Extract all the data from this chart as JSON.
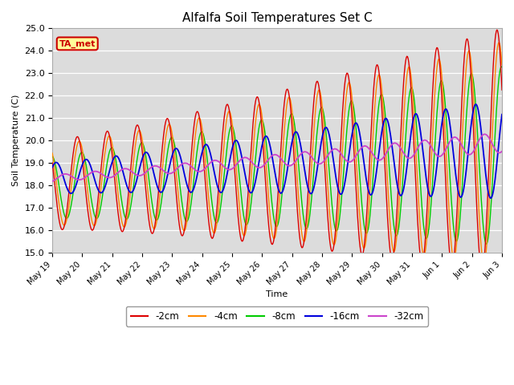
{
  "title": "Alfalfa Soil Temperatures Set C",
  "ylabel": "Soil Temperature (C)",
  "xlabel": "Time",
  "ylim": [
    15.0,
    25.0
  ],
  "yticks": [
    15.0,
    16.0,
    17.0,
    18.0,
    19.0,
    20.0,
    21.0,
    22.0,
    23.0,
    24.0,
    25.0
  ],
  "bg_color": "#dcdcdc",
  "fig_color": "#ffffff",
  "annotation_text": "TA_met",
  "annotation_bg": "#ffff99",
  "annotation_border": "#cc0000",
  "colors": {
    "-2cm": "#dd0000",
    "-4cm": "#ff8800",
    "-8cm": "#00cc00",
    "-16cm": "#0000dd",
    "-32cm": "#cc44cc"
  },
  "legend_labels": [
    "-2cm",
    "-4cm",
    "-8cm",
    "-16cm",
    "-32cm"
  ],
  "n_days": 16
}
